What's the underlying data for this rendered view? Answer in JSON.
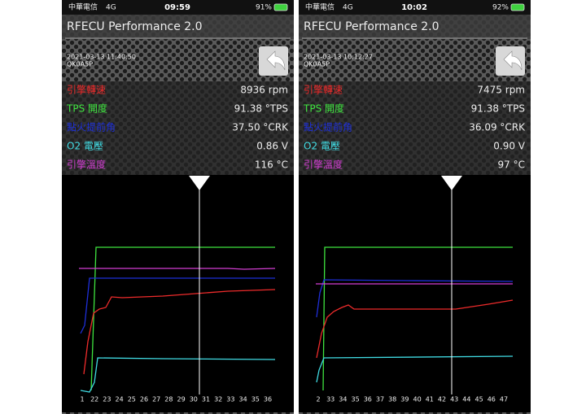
{
  "screens": [
    {
      "status": {
        "carrier": "中華電信",
        "network": "4G",
        "time": "09:59",
        "battery": "91%"
      },
      "app_title": "RFECU Performance 2.0",
      "timestamp": "2021-03-13 11:40:50",
      "device_id": "QK0A5P",
      "readings": [
        {
          "label": "引擎轉速",
          "value": "8936 rpm"
        },
        {
          "label": "TPS 開度",
          "value": "91.38 °TPS"
        },
        {
          "label": "點火提前角",
          "value": "37.50 °CRK"
        },
        {
          "label": "O2 電壓",
          "value": "0.86 V"
        },
        {
          "label": "引擎溫度",
          "value": "116 °C"
        }
      ],
      "x_labels": [
        "1",
        "22",
        "23",
        "24",
        "25",
        "26",
        "27",
        "28",
        "29",
        "30",
        "31",
        "32",
        "33",
        "34",
        "35",
        "36"
      ]
    },
    {
      "status": {
        "carrier": "中華電信",
        "network": "4G",
        "time": "10:02",
        "battery": "92%"
      },
      "app_title": "RFECU Performance 2.0",
      "timestamp": "2021-03-13 10:12:27",
      "device_id": "QK0A5P",
      "readings": [
        {
          "label": "引擎轉速",
          "value": "7475 rpm"
        },
        {
          "label": "TPS 開度",
          "value": "91.38 °TPS"
        },
        {
          "label": "點火提前角",
          "value": "36.09 °CRK"
        },
        {
          "label": "O2 電壓",
          "value": "0.90 V"
        },
        {
          "label": "引擎溫度",
          "value": "97 °C"
        }
      ],
      "x_labels": [
        "2",
        "33",
        "34",
        "35",
        "36",
        "37",
        "38",
        "39",
        "40",
        "41",
        "42",
        "43",
        "44",
        "45",
        "46",
        "47"
      ]
    }
  ]
}
